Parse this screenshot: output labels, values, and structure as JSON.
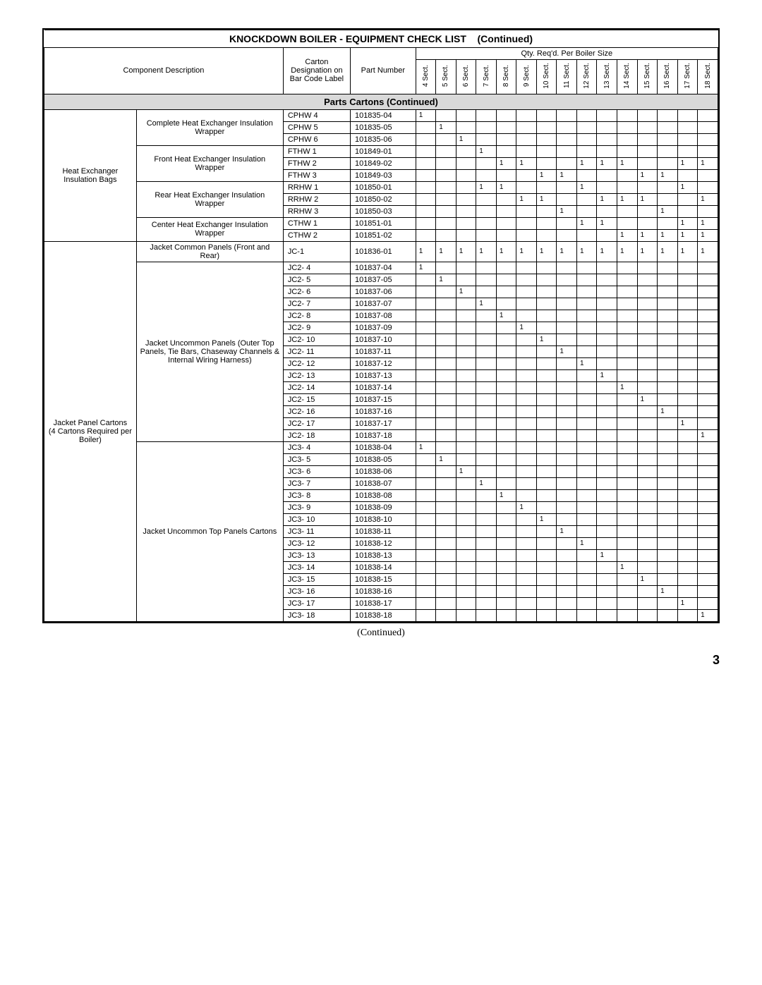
{
  "title_main": "KNOCKDOWN BOILER - EQUIPMENT CHECK LIST",
  "title_cont": "(Continued)",
  "header": {
    "component": "Component Description",
    "carton": "Carton Designation on Bar Code Label",
    "part": "Part Number",
    "qty": "Qty. Req'd. Per Boiler Size"
  },
  "sections": [
    "4 Sect.",
    "5 Sect.",
    "6 Sect.",
    "7 Sect.",
    "8 Sect.",
    "9 Sect.",
    "10 Sect.",
    "11 Sect.",
    "12 Sect.",
    "13 Sect.",
    "14 Sect.",
    "15 Sect.",
    "16 Sect.",
    "17 Sect.",
    "18 Sect."
  ],
  "section_header": "Parts Cartons (Continued)",
  "groups": [
    {
      "label": "Heat Exchanger Insulation Bags",
      "subs": [
        {
          "label": "Complete Heat Exchanger Insulation Wrapper",
          "rows": [
            {
              "c": "CPHW 4",
              "p": "101835-04",
              "q": [
                "1",
                "",
                "",
                "",
                "",
                "",
                "",
                "",
                "",
                "",
                "",
                "",
                "",
                "",
                ""
              ]
            },
            {
              "c": "CPHW 5",
              "p": "101835-05",
              "q": [
                "",
                "1",
                "",
                "",
                "",
                "",
                "",
                "",
                "",
                "",
                "",
                "",
                "",
                "",
                ""
              ]
            },
            {
              "c": "CPHW 6",
              "p": "101835-06",
              "q": [
                "",
                "",
                "1",
                "",
                "",
                "",
                "",
                "",
                "",
                "",
                "",
                "",
                "",
                "",
                ""
              ]
            }
          ]
        },
        {
          "label": "Front Heat Exchanger Insulation Wrapper",
          "rows": [
            {
              "c": "FTHW 1",
              "p": "101849-01",
              "q": [
                "",
                "",
                "",
                "1",
                "",
                "",
                "",
                "",
                "",
                "",
                "",
                "",
                "",
                "",
                ""
              ]
            },
            {
              "c": "FTHW 2",
              "p": "101849-02",
              "q": [
                "",
                "",
                "",
                "",
                "1",
                "1",
                "",
                "",
                "1",
                "1",
                "1",
                "",
                "",
                "1",
                "1"
              ]
            },
            {
              "c": "FTHW 3",
              "p": "101849-03",
              "q": [
                "",
                "",
                "",
                "",
                "",
                "",
                "1",
                "1",
                "",
                "",
                "",
                "1",
                "1",
                "",
                ""
              ]
            }
          ]
        },
        {
          "label": "Rear Heat Exchanger Insulation Wrapper",
          "rows": [
            {
              "c": "RRHW 1",
              "p": "101850-01",
              "q": [
                "",
                "",
                "",
                "1",
                "1",
                "",
                "",
                "",
                "1",
                "",
                "",
                "",
                "",
                "1",
                ""
              ]
            },
            {
              "c": "RRHW 2",
              "p": "101850-02",
              "q": [
                "",
                "",
                "",
                "",
                "",
                "1",
                "1",
                "",
                "",
                "1",
                "1",
                "1",
                "",
                "",
                "1"
              ]
            },
            {
              "c": "RRHW 3",
              "p": "101850-03",
              "q": [
                "",
                "",
                "",
                "",
                "",
                "",
                "",
                "1",
                "",
                "",
                "",
                "",
                "1",
                "",
                ""
              ]
            }
          ]
        },
        {
          "label": "Center Heat Exchanger Insulation Wrapper",
          "rows": [
            {
              "c": "CTHW 1",
              "p": "101851-01",
              "q": [
                "",
                "",
                "",
                "",
                "",
                "",
                "",
                "",
                "1",
                "1",
                "",
                "",
                "",
                "1",
                "1"
              ]
            },
            {
              "c": "CTHW 2",
              "p": "101851-02",
              "q": [
                "",
                "",
                "",
                "",
                "",
                "",
                "",
                "",
                "",
                "",
                "1",
                "1",
                "1",
                "1",
                "1"
              ]
            }
          ]
        }
      ]
    },
    {
      "label": "Jacket Panel Cartons\n(4 Cartons Required per Boiler)",
      "subs": [
        {
          "label": "Jacket Common Panels (Front and Rear)",
          "rows": [
            {
              "c": "JC-1",
              "p": "101836-01",
              "q": [
                "1",
                "1",
                "1",
                "1",
                "1",
                "1",
                "1",
                "1",
                "1",
                "1",
                "1",
                "1",
                "1",
                "1",
                "1"
              ]
            }
          ]
        },
        {
          "label": "Jacket Uncommon Panels (Outer Top Panels, Tie Bars, Chaseway Channels & Internal Wiring Harness)",
          "rows": [
            {
              "c": "JC2- 4",
              "p": "101837-04",
              "q": [
                "1",
                "",
                "",
                "",
                "",
                "",
                "",
                "",
                "",
                "",
                "",
                "",
                "",
                "",
                ""
              ]
            },
            {
              "c": "JC2- 5",
              "p": "101837-05",
              "q": [
                "",
                "1",
                "",
                "",
                "",
                "",
                "",
                "",
                "",
                "",
                "",
                "",
                "",
                "",
                ""
              ]
            },
            {
              "c": "JC2- 6",
              "p": "101837-06",
              "q": [
                "",
                "",
                "1",
                "",
                "",
                "",
                "",
                "",
                "",
                "",
                "",
                "",
                "",
                "",
                ""
              ]
            },
            {
              "c": "JC2- 7",
              "p": "101837-07",
              "q": [
                "",
                "",
                "",
                "1",
                "",
                "",
                "",
                "",
                "",
                "",
                "",
                "",
                "",
                "",
                ""
              ]
            },
            {
              "c": "JC2- 8",
              "p": "101837-08",
              "q": [
                "",
                "",
                "",
                "",
                "1",
                "",
                "",
                "",
                "",
                "",
                "",
                "",
                "",
                "",
                ""
              ]
            },
            {
              "c": "JC2- 9",
              "p": "101837-09",
              "q": [
                "",
                "",
                "",
                "",
                "",
                "1",
                "",
                "",
                "",
                "",
                "",
                "",
                "",
                "",
                ""
              ]
            },
            {
              "c": "JC2- 10",
              "p": "101837-10",
              "q": [
                "",
                "",
                "",
                "",
                "",
                "",
                "1",
                "",
                "",
                "",
                "",
                "",
                "",
                "",
                ""
              ]
            },
            {
              "c": "JC2- 11",
              "p": "101837-11",
              "q": [
                "",
                "",
                "",
                "",
                "",
                "",
                "",
                "1",
                "",
                "",
                "",
                "",
                "",
                "",
                ""
              ]
            },
            {
              "c": "JC2- 12",
              "p": "101837-12",
              "q": [
                "",
                "",
                "",
                "",
                "",
                "",
                "",
                "",
                "1",
                "",
                "",
                "",
                "",
                "",
                ""
              ]
            },
            {
              "c": "JC2- 13",
              "p": "101837-13",
              "q": [
                "",
                "",
                "",
                "",
                "",
                "",
                "",
                "",
                "",
                "1",
                "",
                "",
                "",
                "",
                ""
              ]
            },
            {
              "c": "JC2- 14",
              "p": "101837-14",
              "q": [
                "",
                "",
                "",
                "",
                "",
                "",
                "",
                "",
                "",
                "",
                "1",
                "",
                "",
                "",
                ""
              ]
            },
            {
              "c": "JC2- 15",
              "p": "101837-15",
              "q": [
                "",
                "",
                "",
                "",
                "",
                "",
                "",
                "",
                "",
                "",
                "",
                "1",
                "",
                "",
                ""
              ]
            },
            {
              "c": "JC2- 16",
              "p": "101837-16",
              "q": [
                "",
                "",
                "",
                "",
                "",
                "",
                "",
                "",
                "",
                "",
                "",
                "",
                "1",
                "",
                ""
              ]
            },
            {
              "c": "JC2- 17",
              "p": "101837-17",
              "q": [
                "",
                "",
                "",
                "",
                "",
                "",
                "",
                "",
                "",
                "",
                "",
                "",
                "",
                "1",
                ""
              ]
            },
            {
              "c": "JC2- 18",
              "p": "101837-18",
              "q": [
                "",
                "",
                "",
                "",
                "",
                "",
                "",
                "",
                "",
                "",
                "",
                "",
                "",
                "",
                "1"
              ]
            }
          ]
        },
        {
          "label": "Jacket Uncommon Top Panels Cartons",
          "rows": [
            {
              "c": "JC3- 4",
              "p": "101838-04",
              "q": [
                "1",
                "",
                "",
                "",
                "",
                "",
                "",
                "",
                "",
                "",
                "",
                "",
                "",
                "",
                ""
              ]
            },
            {
              "c": "JC3- 5",
              "p": "101838-05",
              "q": [
                "",
                "1",
                "",
                "",
                "",
                "",
                "",
                "",
                "",
                "",
                "",
                "",
                "",
                "",
                ""
              ]
            },
            {
              "c": "JC3- 6",
              "p": "101838-06",
              "q": [
                "",
                "",
                "1",
                "",
                "",
                "",
                "",
                "",
                "",
                "",
                "",
                "",
                "",
                "",
                ""
              ]
            },
            {
              "c": "JC3- 7",
              "p": "101838-07",
              "q": [
                "",
                "",
                "",
                "1",
                "",
                "",
                "",
                "",
                "",
                "",
                "",
                "",
                "",
                "",
                ""
              ]
            },
            {
              "c": "JC3- 8",
              "p": "101838-08",
              "q": [
                "",
                "",
                "",
                "",
                "1",
                "",
                "",
                "",
                "",
                "",
                "",
                "",
                "",
                "",
                ""
              ]
            },
            {
              "c": "JC3- 9",
              "p": "101838-09",
              "q": [
                "",
                "",
                "",
                "",
                "",
                "1",
                "",
                "",
                "",
                "",
                "",
                "",
                "",
                "",
                ""
              ]
            },
            {
              "c": "JC3- 10",
              "p": "101838-10",
              "q": [
                "",
                "",
                "",
                "",
                "",
                "",
                "1",
                "",
                "",
                "",
                "",
                "",
                "",
                "",
                ""
              ]
            },
            {
              "c": "JC3- 11",
              "p": "101838-11",
              "q": [
                "",
                "",
                "",
                "",
                "",
                "",
                "",
                "1",
                "",
                "",
                "",
                "",
                "",
                "",
                ""
              ]
            },
            {
              "c": "JC3- 12",
              "p": "101838-12",
              "q": [
                "",
                "",
                "",
                "",
                "",
                "",
                "",
                "",
                "1",
                "",
                "",
                "",
                "",
                "",
                ""
              ]
            },
            {
              "c": "JC3- 13",
              "p": "101838-13",
              "q": [
                "",
                "",
                "",
                "",
                "",
                "",
                "",
                "",
                "",
                "1",
                "",
                "",
                "",
                "",
                ""
              ]
            },
            {
              "c": "JC3- 14",
              "p": "101838-14",
              "q": [
                "",
                "",
                "",
                "",
                "",
                "",
                "",
                "",
                "",
                "",
                "1",
                "",
                "",
                "",
                ""
              ]
            },
            {
              "c": "JC3- 15",
              "p": "101838-15",
              "q": [
                "",
                "",
                "",
                "",
                "",
                "",
                "",
                "",
                "",
                "",
                "",
                "1",
                "",
                "",
                ""
              ]
            },
            {
              "c": "JC3- 16",
              "p": "101838-16",
              "q": [
                "",
                "",
                "",
                "",
                "",
                "",
                "",
                "",
                "",
                "",
                "",
                "",
                "1",
                "",
                ""
              ]
            },
            {
              "c": "JC3- 17",
              "p": "101838-17",
              "q": [
                "",
                "",
                "",
                "",
                "",
                "",
                "",
                "",
                "",
                "",
                "",
                "",
                "",
                "1",
                ""
              ]
            },
            {
              "c": "JC3- 18",
              "p": "101838-18",
              "q": [
                "",
                "",
                "",
                "",
                "",
                "",
                "",
                "",
                "",
                "",
                "",
                "",
                "",
                "",
                "1"
              ]
            }
          ]
        }
      ]
    }
  ],
  "continued": "(Continued)",
  "page": "3",
  "style": {
    "section_bg": "#d9d9d9",
    "border": "#000000",
    "font": "Arial",
    "title_size": 14,
    "body_size": 11
  }
}
